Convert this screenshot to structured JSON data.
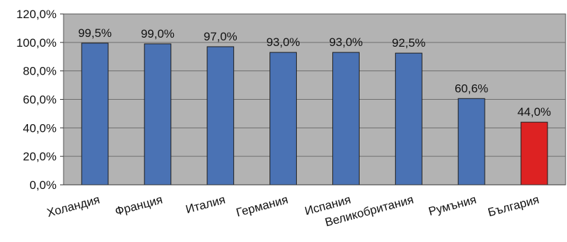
{
  "chart_data": {
    "type": "bar",
    "categories": [
      "Холандия",
      "Франция",
      "Италия",
      "Германия",
      "Испания",
      "Великобритания",
      "Румъния",
      "България"
    ],
    "values": [
      99.5,
      99.0,
      97.0,
      93.0,
      93.0,
      92.5,
      60.6,
      44.0
    ],
    "value_labels": [
      "99,5%",
      "99,0%",
      "97,0%",
      "93,0%",
      "93,0%",
      "92,5%",
      "60,6%",
      "44,0%"
    ],
    "ytick_labels": [
      "0,0%",
      "20,0%",
      "40,0%",
      "60,0%",
      "80,0%",
      "100,0%",
      "120,0%"
    ],
    "ylim": [
      0,
      120
    ],
    "title": "",
    "xlabel": "",
    "ylabel": "",
    "grid": true,
    "legend": "none",
    "colors": {
      "plot_background": "#b3b3b3",
      "bar_default": "#4a72b4",
      "bar_highlight": "#dd2222",
      "gridline": "#6e6e6e",
      "bar_stroke": "#1e1e1e"
    },
    "highlight_category": "България"
  }
}
